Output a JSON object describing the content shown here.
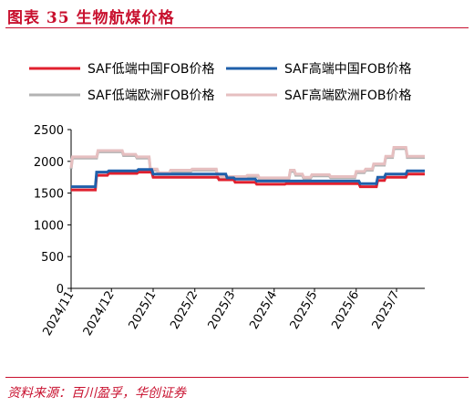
{
  "figure": {
    "title": "图表 35   生物航煤价格",
    "source": "资料来源：百川盈孚，华创证券"
  },
  "chart_data": {
    "type": "line",
    "title": "",
    "xlabel": "",
    "ylabel": "",
    "ylim": [
      0,
      2500
    ],
    "yticks": [
      0,
      500,
      1000,
      1500,
      2000,
      2500
    ],
    "xlim": [
      "2024-11-01",
      "2025-07-22"
    ],
    "xticks": [
      "2024/11",
      "2024/12",
      "2025/1",
      "2025/2",
      "2025/3",
      "2025/4",
      "2025/5",
      "2025/6",
      "2025/7"
    ],
    "xtick_dates": [
      "2024-11-01",
      "2024-12-01",
      "2025-01-01",
      "2025-02-01",
      "2025-03-01",
      "2025-04-01",
      "2025-05-01",
      "2025-06-01",
      "2025-07-01"
    ],
    "grid": false,
    "legend_position": "top",
    "series": [
      {
        "name": "SAF低端中国FOB价格",
        "color": "#e0202e",
        "points": [
          [
            "2024-11-01",
            1550
          ],
          [
            "2024-11-19",
            1550
          ],
          [
            "2024-11-20",
            1780
          ],
          [
            "2024-11-28",
            1780
          ],
          [
            "2024-11-29",
            1810
          ],
          [
            "2024-12-20",
            1810
          ],
          [
            "2024-12-21",
            1830
          ],
          [
            "2024-12-31",
            1830
          ],
          [
            "2025-01-01",
            1750
          ],
          [
            "2025-02-18",
            1750
          ],
          [
            "2025-02-19",
            1710
          ],
          [
            "2025-03-02",
            1710
          ],
          [
            "2025-03-03",
            1670
          ],
          [
            "2025-03-18",
            1670
          ],
          [
            "2025-03-19",
            1640
          ],
          [
            "2025-04-09",
            1640
          ],
          [
            "2025-04-10",
            1650
          ],
          [
            "2025-06-03",
            1650
          ],
          [
            "2025-06-04",
            1600
          ],
          [
            "2025-06-16",
            1600
          ],
          [
            "2025-06-17",
            1700
          ],
          [
            "2025-06-22",
            1700
          ],
          [
            "2025-06-23",
            1750
          ],
          [
            "2025-07-08",
            1750
          ],
          [
            "2025-07-09",
            1800
          ],
          [
            "2025-07-22",
            1800
          ]
        ]
      },
      {
        "name": "SAF高端中国FOB价格",
        "color": "#1f5faa",
        "points": [
          [
            "2024-11-01",
            1600
          ],
          [
            "2024-11-19",
            1600
          ],
          [
            "2024-11-20",
            1830
          ],
          [
            "2024-11-28",
            1830
          ],
          [
            "2024-11-29",
            1850
          ],
          [
            "2024-12-20",
            1850
          ],
          [
            "2024-12-21",
            1870
          ],
          [
            "2024-12-31",
            1870
          ],
          [
            "2025-01-01",
            1800
          ],
          [
            "2025-02-24",
            1800
          ],
          [
            "2025-02-25",
            1740
          ],
          [
            "2025-03-02",
            1740
          ],
          [
            "2025-03-03",
            1720
          ],
          [
            "2025-03-18",
            1720
          ],
          [
            "2025-03-19",
            1690
          ],
          [
            "2025-06-03",
            1690
          ],
          [
            "2025-06-04",
            1650
          ],
          [
            "2025-06-16",
            1650
          ],
          [
            "2025-06-17",
            1750
          ],
          [
            "2025-06-22",
            1750
          ],
          [
            "2025-06-23",
            1800
          ],
          [
            "2025-07-08",
            1800
          ],
          [
            "2025-07-09",
            1850
          ],
          [
            "2025-07-22",
            1850
          ]
        ]
      },
      {
        "name": "SAF低端欧洲FOB价格",
        "color": "#b3b3b3",
        "points": [
          [
            "2024-11-01",
            1880
          ],
          [
            "2024-11-02",
            2050
          ],
          [
            "2024-11-20",
            2050
          ],
          [
            "2024-11-21",
            2150
          ],
          [
            "2024-12-09",
            2150
          ],
          [
            "2024-12-10",
            2090
          ],
          [
            "2024-12-19",
            2090
          ],
          [
            "2024-12-20",
            2050
          ],
          [
            "2024-12-29",
            2050
          ],
          [
            "2024-12-30",
            1860
          ],
          [
            "2025-01-04",
            1860
          ],
          [
            "2025-01-05",
            1800
          ],
          [
            "2025-01-13",
            1800
          ],
          [
            "2025-01-14",
            1840
          ],
          [
            "2025-01-29",
            1840
          ],
          [
            "2025-01-30",
            1860
          ],
          [
            "2025-02-17",
            1860
          ],
          [
            "2025-02-18",
            1740
          ],
          [
            "2025-03-11",
            1740
          ],
          [
            "2025-03-12",
            1760
          ],
          [
            "2025-03-20",
            1760
          ],
          [
            "2025-03-21",
            1720
          ],
          [
            "2025-04-12",
            1720
          ],
          [
            "2025-04-13",
            1840
          ],
          [
            "2025-04-16",
            1840
          ],
          [
            "2025-04-17",
            1780
          ],
          [
            "2025-04-22",
            1780
          ],
          [
            "2025-04-23",
            1730
          ],
          [
            "2025-04-28",
            1730
          ],
          [
            "2025-04-29",
            1770
          ],
          [
            "2025-05-12",
            1770
          ],
          [
            "2025-05-13",
            1740
          ],
          [
            "2025-05-31",
            1740
          ],
          [
            "2025-06-01",
            1820
          ],
          [
            "2025-06-07",
            1820
          ],
          [
            "2025-06-08",
            1860
          ],
          [
            "2025-06-13",
            1860
          ],
          [
            "2025-06-14",
            1940
          ],
          [
            "2025-06-22",
            1940
          ],
          [
            "2025-06-23",
            2060
          ],
          [
            "2025-06-28",
            2060
          ],
          [
            "2025-06-29",
            2200
          ],
          [
            "2025-07-08",
            2200
          ],
          [
            "2025-07-09",
            2060
          ],
          [
            "2025-07-22",
            2060
          ]
        ]
      },
      {
        "name": "SAF高端欧洲FOB价格",
        "color": "#e6bfc0",
        "points": [
          [
            "2024-11-01",
            1900
          ],
          [
            "2024-11-02",
            2070
          ],
          [
            "2024-11-20",
            2070
          ],
          [
            "2024-11-21",
            2170
          ],
          [
            "2024-12-09",
            2170
          ],
          [
            "2024-12-10",
            2110
          ],
          [
            "2024-12-19",
            2110
          ],
          [
            "2024-12-20",
            2070
          ],
          [
            "2024-12-29",
            2070
          ],
          [
            "2024-12-30",
            1880
          ],
          [
            "2025-01-04",
            1880
          ],
          [
            "2025-01-05",
            1820
          ],
          [
            "2025-01-13",
            1820
          ],
          [
            "2025-01-14",
            1860
          ],
          [
            "2025-01-29",
            1860
          ],
          [
            "2025-01-30",
            1880
          ],
          [
            "2025-02-17",
            1880
          ],
          [
            "2025-02-18",
            1760
          ],
          [
            "2025-03-11",
            1760
          ],
          [
            "2025-03-12",
            1780
          ],
          [
            "2025-03-20",
            1780
          ],
          [
            "2025-03-21",
            1740
          ],
          [
            "2025-04-12",
            1740
          ],
          [
            "2025-04-13",
            1860
          ],
          [
            "2025-04-16",
            1860
          ],
          [
            "2025-04-17",
            1800
          ],
          [
            "2025-04-22",
            1800
          ],
          [
            "2025-04-23",
            1750
          ],
          [
            "2025-04-28",
            1750
          ],
          [
            "2025-04-29",
            1790
          ],
          [
            "2025-05-12",
            1790
          ],
          [
            "2025-05-13",
            1760
          ],
          [
            "2025-05-31",
            1760
          ],
          [
            "2025-06-01",
            1840
          ],
          [
            "2025-06-07",
            1840
          ],
          [
            "2025-06-08",
            1880
          ],
          [
            "2025-06-13",
            1880
          ],
          [
            "2025-06-14",
            1960
          ],
          [
            "2025-06-22",
            1960
          ],
          [
            "2025-06-23",
            2080
          ],
          [
            "2025-06-28",
            2080
          ],
          [
            "2025-06-29",
            2220
          ],
          [
            "2025-07-08",
            2220
          ],
          [
            "2025-07-09",
            2080
          ],
          [
            "2025-07-22",
            2080
          ]
        ]
      }
    ]
  }
}
